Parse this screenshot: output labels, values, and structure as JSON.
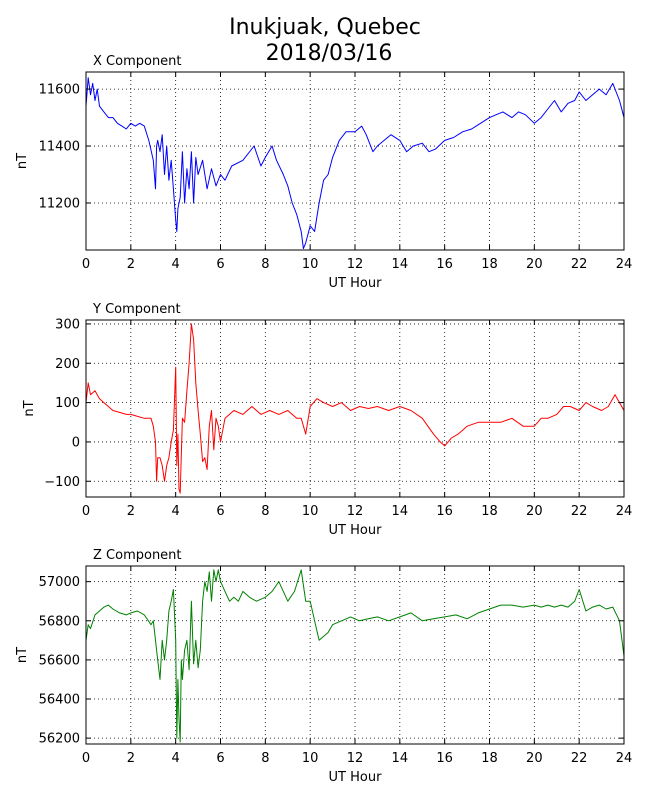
{
  "title_line1": "Inukjuak, Quebec",
  "title_line2": "2018/03/16",
  "chart_data": [
    {
      "type": "line",
      "title": "X Component",
      "xlabel": "UT Hour",
      "ylabel": "nT",
      "xlim": [
        0,
        24
      ],
      "ylim": [
        11035,
        11660
      ],
      "xticks": [
        0,
        2,
        4,
        6,
        8,
        10,
        12,
        14,
        16,
        18,
        20,
        22,
        24
      ],
      "yticks": [
        11200,
        11400,
        11600
      ],
      "grid": true,
      "color": "#0000ff",
      "series": [
        {
          "x": [
            0,
            0.1,
            0.2,
            0.3,
            0.4,
            0.5,
            0.6,
            0.8,
            1.0,
            1.2,
            1.4,
            1.6,
            1.8,
            2.0,
            2.2,
            2.4,
            2.6,
            2.8,
            3.0,
            3.1,
            3.15,
            3.2,
            3.3,
            3.4,
            3.5,
            3.6,
            3.7,
            3.8,
            3.9,
            4.0,
            4.05,
            4.1,
            4.2,
            4.3,
            4.4,
            4.5,
            4.6,
            4.7,
            4.8,
            4.9,
            5.0,
            5.2,
            5.4,
            5.6,
            5.8,
            6.0,
            6.2,
            6.5,
            7.0,
            7.5,
            7.8,
            8.0,
            8.3,
            8.5,
            8.8,
            9.0,
            9.2,
            9.4,
            9.6,
            9.7,
            9.8,
            10.0,
            10.2,
            10.4,
            10.6,
            10.8,
            11.0,
            11.3,
            11.6,
            12.0,
            12.3,
            12.5,
            12.8,
            13.0,
            13.3,
            13.6,
            14.0,
            14.3,
            14.6,
            15.0,
            15.3,
            15.6,
            16.0,
            16.4,
            16.8,
            17.2,
            17.6,
            18.0,
            18.3,
            18.6,
            19.0,
            19.3,
            19.6,
            20.0,
            20.3,
            20.6,
            20.9,
            21.2,
            21.5,
            21.8,
            22.0,
            22.3,
            22.6,
            22.9,
            23.2,
            23.5,
            23.8,
            24.0
          ],
          "y": [
            11540,
            11640,
            11580,
            11620,
            11560,
            11600,
            11540,
            11520,
            11500,
            11500,
            11480,
            11470,
            11460,
            11480,
            11470,
            11480,
            11470,
            11420,
            11350,
            11250,
            11400,
            11420,
            11380,
            11440,
            11300,
            11400,
            11280,
            11350,
            11250,
            11140,
            11100,
            11180,
            11220,
            11380,
            11200,
            11320,
            11250,
            11380,
            11200,
            11360,
            11300,
            11350,
            11250,
            11320,
            11260,
            11300,
            11280,
            11330,
            11350,
            11400,
            11330,
            11360,
            11400,
            11350,
            11300,
            11260,
            11200,
            11160,
            11100,
            11040,
            11060,
            11120,
            11100,
            11200,
            11280,
            11300,
            11360,
            11420,
            11450,
            11450,
            11470,
            11440,
            11380,
            11400,
            11420,
            11440,
            11420,
            11380,
            11400,
            11410,
            11380,
            11390,
            11420,
            11430,
            11450,
            11460,
            11480,
            11500,
            11510,
            11520,
            11500,
            11520,
            11510,
            11480,
            11500,
            11530,
            11560,
            11520,
            11550,
            11560,
            11590,
            11560,
            11580,
            11600,
            11580,
            11620,
            11560,
            11500
          ]
        }
      ]
    },
    {
      "type": "line",
      "title": "Y Component",
      "xlabel": "UT Hour",
      "ylabel": "nT",
      "xlim": [
        0,
        24
      ],
      "ylim": [
        -140,
        310
      ],
      "xticks": [
        0,
        2,
        4,
        6,
        8,
        10,
        12,
        14,
        16,
        18,
        20,
        22,
        24
      ],
      "yticks": [
        -100,
        0,
        100,
        200,
        300
      ],
      "grid": true,
      "color": "#ff0000",
      "series": [
        {
          "x": [
            0,
            0.1,
            0.2,
            0.4,
            0.6,
            0.8,
            1.0,
            1.2,
            1.5,
            1.8,
            2.0,
            2.3,
            2.6,
            2.9,
            3.0,
            3.1,
            3.15,
            3.2,
            3.3,
            3.4,
            3.5,
            3.6,
            3.7,
            3.8,
            3.9,
            4.0,
            4.05,
            4.1,
            4.15,
            4.2,
            4.3,
            4.4,
            4.5,
            4.6,
            4.7,
            4.8,
            4.9,
            5.0,
            5.1,
            5.2,
            5.3,
            5.4,
            5.5,
            5.6,
            5.7,
            5.8,
            5.9,
            6.0,
            6.2,
            6.4,
            6.6,
            7.0,
            7.4,
            7.8,
            8.2,
            8.6,
            9.0,
            9.4,
            9.6,
            9.8,
            10.0,
            10.3,
            10.6,
            11.0,
            11.4,
            11.8,
            12.2,
            12.6,
            13.0,
            13.5,
            14.0,
            14.5,
            15.0,
            15.5,
            15.8,
            16.0,
            16.3,
            16.6,
            17.0,
            17.5,
            18.0,
            18.5,
            19.0,
            19.5,
            20.0,
            20.3,
            20.6,
            21.0,
            21.3,
            21.6,
            22.0,
            22.3,
            22.6,
            23.0,
            23.3,
            23.6,
            24.0
          ],
          "y": [
            100,
            150,
            120,
            130,
            110,
            100,
            90,
            80,
            75,
            70,
            70,
            65,
            60,
            60,
            40,
            0,
            -100,
            -40,
            -40,
            -60,
            -100,
            -60,
            -40,
            0,
            30,
            190,
            -60,
            20,
            -120,
            -130,
            60,
            50,
            130,
            200,
            300,
            260,
            150,
            80,
            20,
            -50,
            -40,
            -70,
            40,
            80,
            -20,
            60,
            40,
            0,
            60,
            70,
            80,
            70,
            90,
            70,
            80,
            70,
            80,
            60,
            60,
            20,
            90,
            110,
            100,
            90,
            100,
            80,
            90,
            85,
            90,
            80,
            90,
            80,
            60,
            20,
            0,
            -10,
            10,
            20,
            40,
            50,
            50,
            50,
            60,
            40,
            40,
            60,
            60,
            70,
            90,
            90,
            80,
            100,
            90,
            80,
            90,
            120,
            80
          ]
        }
      ]
    },
    {
      "type": "line",
      "title": "Z Component",
      "xlabel": "UT Hour",
      "ylabel": "nT",
      "xlim": [
        0,
        24
      ],
      "ylim": [
        56170,
        57080
      ],
      "xticks": [
        0,
        2,
        4,
        6,
        8,
        10,
        12,
        14,
        16,
        18,
        20,
        22,
        24
      ],
      "yticks": [
        56200,
        56400,
        56600,
        56800,
        57000
      ],
      "grid": true,
      "color": "#008000",
      "series": [
        {
          "x": [
            0,
            0.1,
            0.2,
            0.4,
            0.6,
            0.8,
            1.0,
            1.2,
            1.5,
            1.8,
            2.0,
            2.3,
            2.6,
            2.9,
            3.0,
            3.1,
            3.2,
            3.3,
            3.4,
            3.5,
            3.6,
            3.7,
            3.8,
            3.9,
            4.0,
            4.05,
            4.1,
            4.15,
            4.2,
            4.25,
            4.3,
            4.4,
            4.5,
            4.6,
            4.7,
            4.8,
            4.9,
            5.0,
            5.1,
            5.2,
            5.3,
            5.4,
            5.5,
            5.6,
            5.7,
            5.8,
            5.9,
            6.0,
            6.2,
            6.4,
            6.6,
            6.8,
            7.0,
            7.3,
            7.6,
            8.0,
            8.3,
            8.6,
            9.0,
            9.3,
            9.6,
            9.8,
            10.0,
            10.2,
            10.4,
            10.6,
            10.8,
            11.0,
            11.4,
            11.8,
            12.2,
            12.6,
            13.0,
            13.5,
            14.0,
            14.5,
            15.0,
            15.5,
            16.0,
            16.5,
            17.0,
            17.5,
            18.0,
            18.5,
            19.0,
            19.5,
            20.0,
            20.3,
            20.6,
            20.9,
            21.2,
            21.5,
            21.8,
            22.0,
            22.3,
            22.6,
            22.9,
            23.2,
            23.5,
            23.8,
            24.0
          ],
          "y": [
            56700,
            56780,
            56760,
            56830,
            56850,
            56870,
            56880,
            56860,
            56840,
            56830,
            56840,
            56850,
            56830,
            56780,
            56800,
            56700,
            56600,
            56500,
            56700,
            56600,
            56700,
            56850,
            56900,
            56960,
            56700,
            56200,
            56500,
            56300,
            56180,
            56600,
            56500,
            56650,
            56700,
            56550,
            56900,
            56580,
            56700,
            56560,
            56650,
            56900,
            57000,
            56950,
            57050,
            56900,
            57060,
            57000,
            57060,
            57000,
            56950,
            56900,
            56920,
            56900,
            56950,
            56920,
            56900,
            56920,
            56950,
            57000,
            56900,
            56950,
            57060,
            56900,
            56900,
            56800,
            56700,
            56720,
            56740,
            56780,
            56800,
            56820,
            56800,
            56810,
            56820,
            56800,
            56820,
            56840,
            56800,
            56810,
            56820,
            56830,
            56810,
            56840,
            56860,
            56880,
            56880,
            56870,
            56880,
            56870,
            56880,
            56870,
            56880,
            56870,
            56900,
            56960,
            56850,
            56870,
            56880,
            56860,
            56870,
            56800,
            56620
          ]
        }
      ]
    }
  ]
}
